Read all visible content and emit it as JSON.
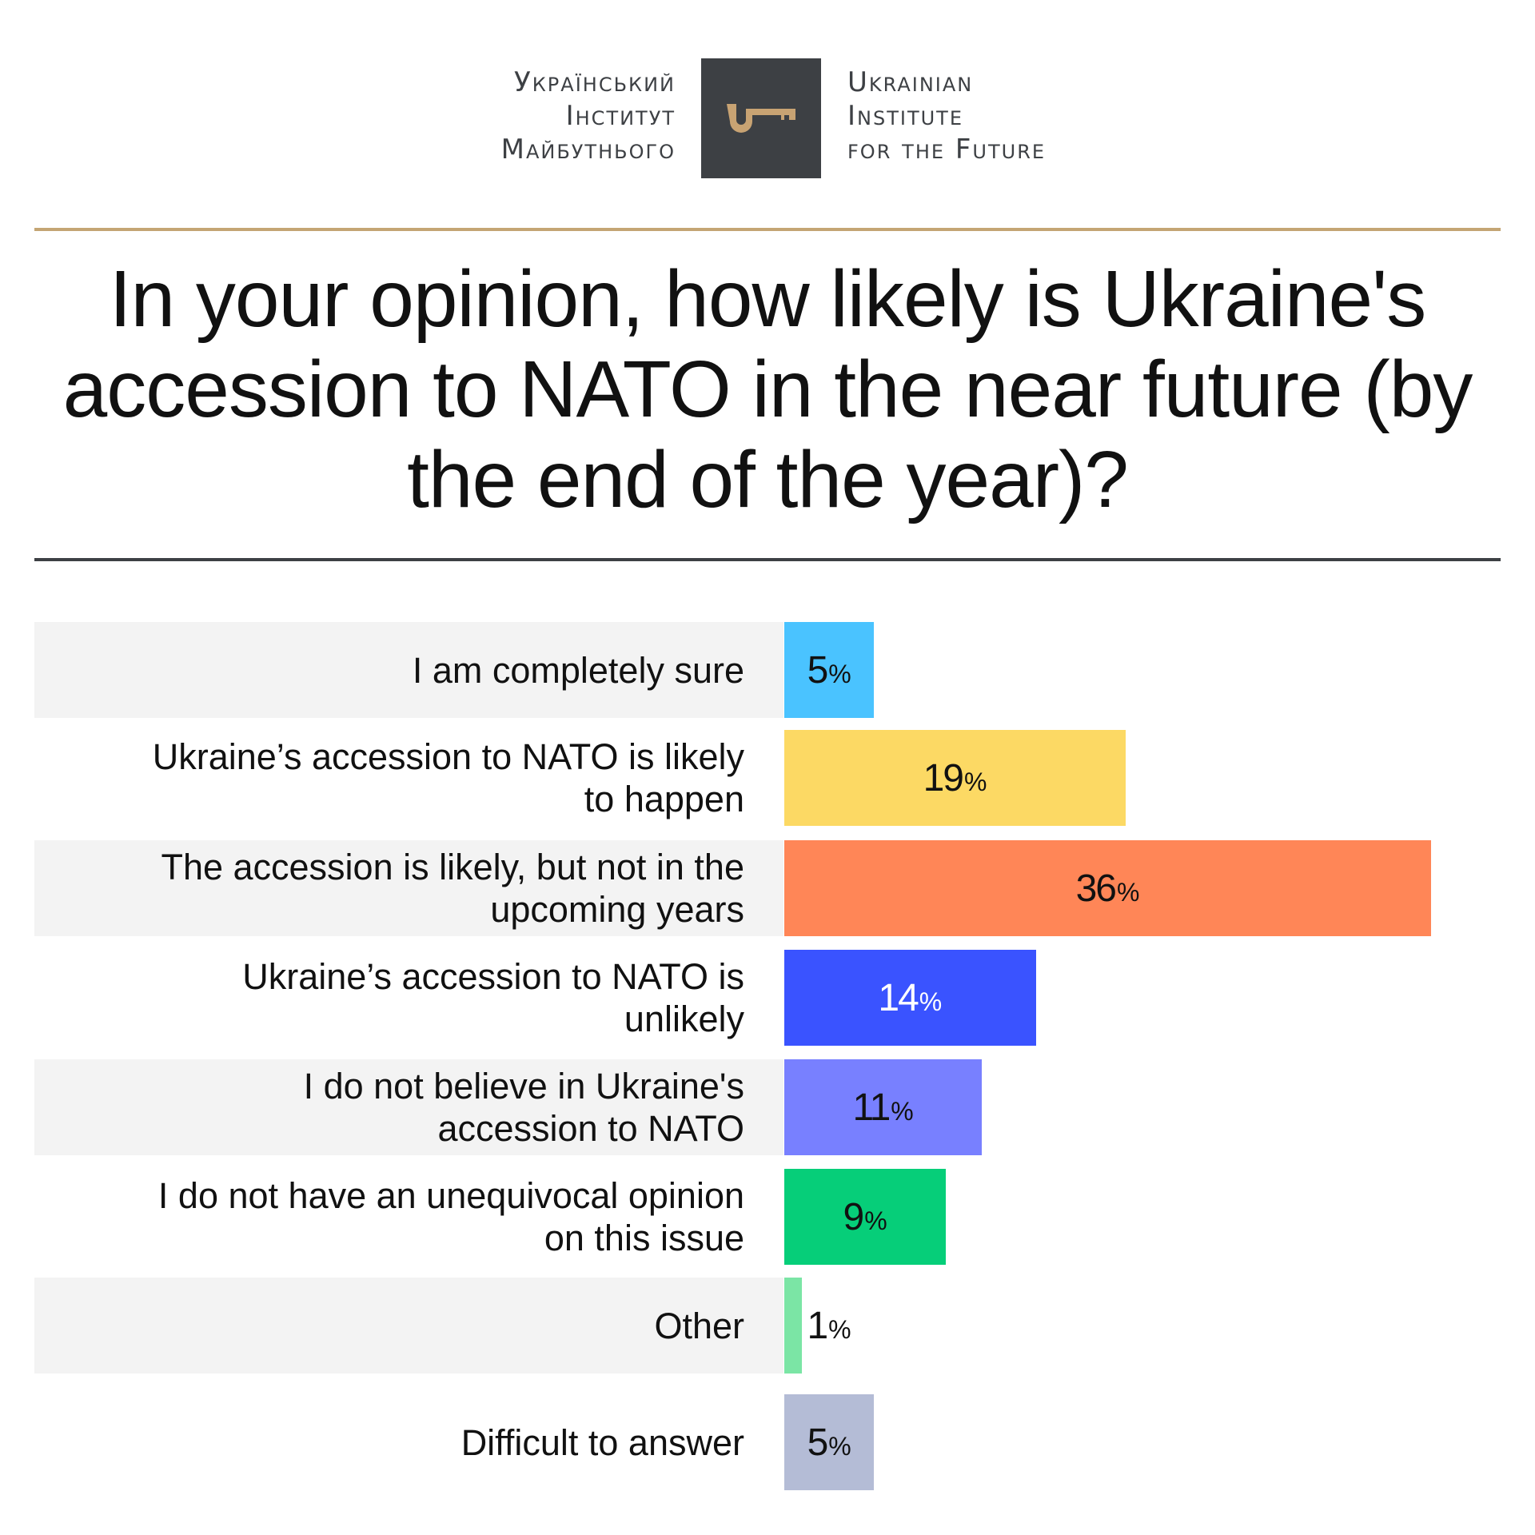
{
  "logo": {
    "ua_lines": [
      "Український",
      "Інститут",
      "Майбутнього"
    ],
    "en_lines": [
      "Ukrainian",
      "Institute",
      "for the Future"
    ],
    "box_color": "#3D4044",
    "key_color": "#C8A373",
    "icon": "key-icon"
  },
  "colors": {
    "gold_rule": "#C4A574",
    "dark_rule": "#3D4044",
    "row_bg": "#F3F3F3"
  },
  "chart_data": {
    "type": "bar",
    "orientation": "horizontal",
    "title": "In your opinion, how likely is Ukraine's accession to NATO in the near future (by the end of the year)?",
    "categories": [
      "I am completely sure",
      "Ukraine’s accession to NATO is likely to happen",
      "The accession is likely, but not in the upcoming years",
      "Ukraine’s accession to NATO is unlikely",
      "I do not believe in Ukraine's accession to NATO",
      "I do not have an unequivocal opinion on this issue",
      "Other",
      "Difficult to answer"
    ],
    "values": [
      5,
      19,
      36,
      14,
      11,
      9,
      1,
      5
    ],
    "value_suffix": "%",
    "bar_colors": [
      "#4AC3FF",
      "#FCD964",
      "#FF8657",
      "#3A53FF",
      "#7880FF",
      "#06CE79",
      "#7BE5A5",
      "#B4BCD6"
    ],
    "label_colors": [
      "#111111",
      "#111111",
      "#111111",
      "#FFFFFF",
      "#111111",
      "#111111",
      "#111111",
      "#111111"
    ],
    "xlim": [
      0,
      36
    ],
    "grid": false,
    "legend": "none"
  }
}
